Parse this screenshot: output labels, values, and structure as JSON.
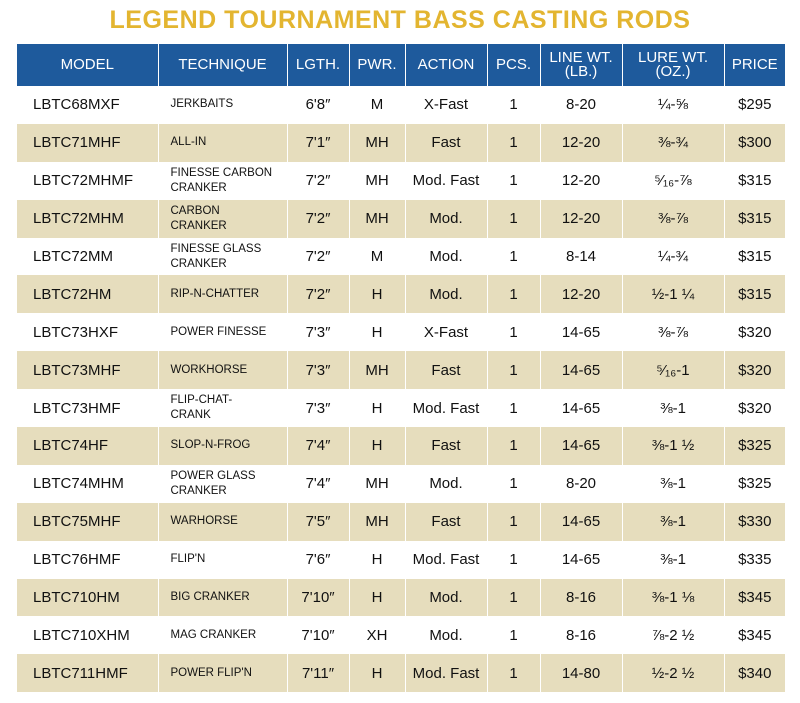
{
  "title": "LEGEND TOURNAMENT BASS CASTING RODS",
  "table": {
    "header": [
      "MODEL",
      "TECHNIQUE",
      "LGTH.",
      "PWR.",
      "ACTION",
      "PCS.",
      "LINE WT.\n(LB.)",
      "LURE WT.\n(OZ.)",
      "PRICE"
    ],
    "rows": [
      [
        "LBTC68MXF",
        "JERKBAITS",
        "6'8″",
        "M",
        "X-Fast",
        "1",
        "8-20",
        "¼-⅝",
        "$295"
      ],
      [
        "LBTC71MHF",
        "ALL-IN",
        "7'1″",
        "MH",
        "Fast",
        "1",
        "12-20",
        "⅜-¾",
        "$300"
      ],
      [
        "LBTC72MHMF",
        "FINESSE CARBON\nCRANKER",
        "7'2″",
        "MH",
        "Mod. Fast",
        "1",
        "12-20",
        "⁵⁄₁₆-⅞",
        "$315"
      ],
      [
        "LBTC72MHM",
        "CARBON\nCRANKER",
        "7'2″",
        "MH",
        "Mod.",
        "1",
        "12-20",
        "⅜-⅞",
        "$315"
      ],
      [
        "LBTC72MM",
        "FINESSE GLASS\nCRANKER",
        "7'2″",
        "M",
        "Mod.",
        "1",
        "8-14",
        "¼-¾",
        "$315"
      ],
      [
        "LBTC72HM",
        "RIP-N-CHATTER",
        "7'2″",
        "H",
        "Mod.",
        "1",
        "12-20",
        "½-1 ¼",
        "$315"
      ],
      [
        "LBTC73HXF",
        "POWER FINESSE",
        "7'3″",
        "H",
        "X-Fast",
        "1",
        "14-65",
        "⅜-⅞",
        "$320"
      ],
      [
        "LBTC73MHF",
        "WORKHORSE",
        "7'3″",
        "MH",
        "Fast",
        "1",
        "14-65",
        "⁵⁄₁₆-1",
        "$320"
      ],
      [
        "LBTC73HMF",
        "FLIP-CHAT-\nCRANK",
        "7'3″",
        "H",
        "Mod. Fast",
        "1",
        "14-65",
        "⅜-1",
        "$320"
      ],
      [
        "LBTC74HF",
        "SLOP-N-FROG",
        "7'4″",
        "H",
        "Fast",
        "1",
        "14-65",
        "⅜-1 ½",
        "$325"
      ],
      [
        "LBTC74MHM",
        "POWER GLASS\nCRANKER",
        "7'4″",
        "MH",
        "Mod.",
        "1",
        "8-20",
        "⅜-1",
        "$325"
      ],
      [
        "LBTC75MHF",
        "WARHORSE",
        "7'5″",
        "MH",
        "Fast",
        "1",
        "14-65",
        "⅜-1",
        "$330"
      ],
      [
        "LBTC76HMF",
        "FLIP'N",
        "7'6″",
        "H",
        "Mod. Fast",
        "1",
        "14-65",
        "⅜-1",
        "$335"
      ],
      [
        "LBTC710HM",
        "BIG CRANKER",
        "7'10″",
        "H",
        "Mod.",
        "1",
        "8-16",
        "⅜-1 ⅛",
        "$345"
      ],
      [
        "LBTC710XHM",
        "MAG CRANKER",
        "7'10″",
        "XH",
        "Mod.",
        "1",
        "8-16",
        "⅞-2 ½",
        "$345"
      ],
      [
        "LBTC711HMF",
        "POWER FLIP'N",
        "7'11″",
        "H",
        "Mod. Fast",
        "1",
        "14-80",
        "½-2 ½",
        "$340"
      ]
    ]
  }
}
